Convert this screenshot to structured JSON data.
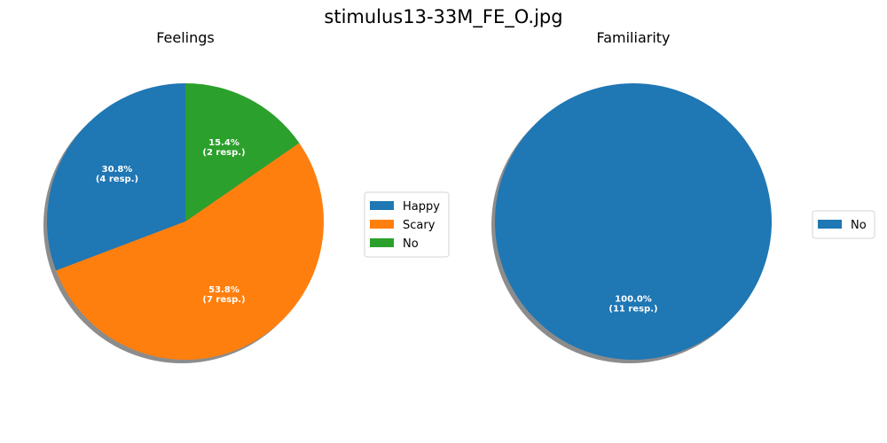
{
  "figure": {
    "title": "stimulus13-33M_FE_O.jpg"
  },
  "shadow_color": "#7f7f7f",
  "chart_data": [
    {
      "type": "pie",
      "title": "Feelings",
      "start_angle_deg": 90,
      "shadow": true,
      "legend": "right",
      "slices": [
        {
          "label": "Happy",
          "value": 4,
          "percent": "30.8%",
          "resp": "(4 resp.)",
          "color": "#1f77b4"
        },
        {
          "label": "Scary",
          "value": 7,
          "percent": "53.8%",
          "resp": "(7 resp.)",
          "color": "#ff7f0e"
        },
        {
          "label": "No",
          "value": 2,
          "percent": "15.4%",
          "resp": "(2 resp.)",
          "color": "#2ca02c"
        }
      ]
    },
    {
      "type": "pie",
      "title": "Familiarity",
      "start_angle_deg": 90,
      "shadow": true,
      "legend": "right",
      "slices": [
        {
          "label": "No",
          "value": 11,
          "percent": "100.0%",
          "resp": "(11 resp.)",
          "color": "#1f77b4"
        }
      ]
    }
  ]
}
